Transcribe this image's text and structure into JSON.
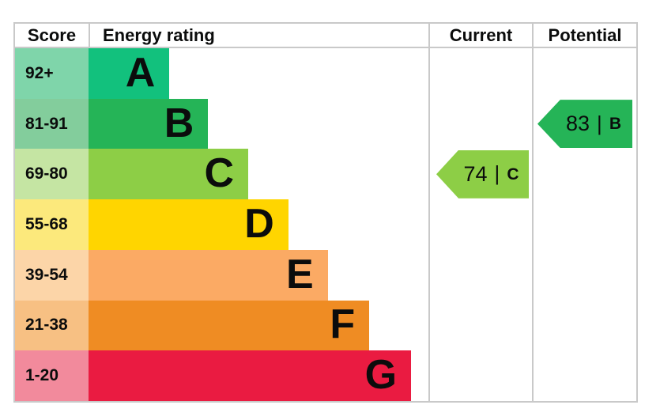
{
  "header": {
    "score": "Score",
    "energy_rating": "Energy rating",
    "current": "Current",
    "potential": "Potential"
  },
  "chart_data": {
    "type": "bar",
    "subtype": "epc-energy-rating",
    "bands": [
      {
        "score": "92+",
        "letter": "A",
        "bar_color": "#12c17d",
        "score_color": "#7fd5aa",
        "width_frac": 0.238
      },
      {
        "score": "81-91",
        "letter": "B",
        "bar_color": "#25b457",
        "score_color": "#83cd9c",
        "width_frac": 0.352
      },
      {
        "score": "69-80",
        "letter": "C",
        "bar_color": "#8dce46",
        "score_color": "#c5e5a3",
        "width_frac": 0.47
      },
      {
        "score": "55-68",
        "letter": "D",
        "bar_color": "#ffd500",
        "score_color": "#fce97c",
        "width_frac": 0.588
      },
      {
        "score": "39-54",
        "letter": "E",
        "bar_color": "#fbaa64",
        "score_color": "#fcd5a8",
        "width_frac": 0.704
      },
      {
        "score": "21-38",
        "letter": "F",
        "bar_color": "#ef8c23",
        "score_color": "#f7c083",
        "width_frac": 0.826
      },
      {
        "score": "1-20",
        "letter": "G",
        "bar_color": "#ea1b41",
        "score_color": "#f28a9c",
        "width_frac": 0.949
      }
    ],
    "current": {
      "value": "74",
      "letter": "C",
      "band_index": 2,
      "color": "#8dce46"
    },
    "potential": {
      "value": "83",
      "letter": "B",
      "band_index": 1,
      "color": "#25b457"
    },
    "separator": "|"
  }
}
